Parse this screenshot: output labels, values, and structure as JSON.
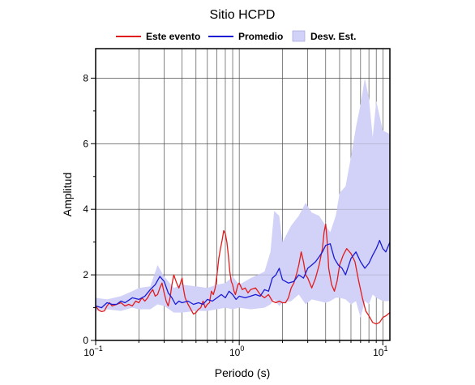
{
  "chart_data": {
    "type": "line",
    "title": "Sitio HCPD",
    "xlabel": "Periodo (s)",
    "ylabel": "Amplitud",
    "x_scale": "log",
    "xlim": [
      0.1,
      11.2
    ],
    "ylim": [
      0,
      8.9
    ],
    "grid": true,
    "legend_placement": "top",
    "x_ticks": [
      {
        "value": 0.1,
        "base": "10",
        "exp": "−1"
      },
      {
        "value": 1,
        "base": "10",
        "exp": "0"
      },
      {
        "value": 10,
        "base": "10",
        "exp": "1"
      }
    ],
    "y_ticks": [
      {
        "value": 0,
        "label": "0"
      },
      {
        "value": 2,
        "label": "2"
      },
      {
        "value": 4,
        "label": "4"
      },
      {
        "value": 6,
        "label": "6"
      },
      {
        "value": 8,
        "label": "8"
      }
    ],
    "series": [
      {
        "name": "Desv. Est.",
        "kind": "band",
        "color": "#d2d2f8",
        "x": [
          0.1,
          0.12,
          0.15,
          0.18,
          0.2,
          0.24,
          0.27,
          0.3,
          0.35,
          0.4,
          0.5,
          0.6,
          0.7,
          0.8,
          0.9,
          1.0,
          1.2,
          1.5,
          1.65,
          1.75,
          1.9,
          2.0,
          2.3,
          2.6,
          2.9,
          3.2,
          3.6,
          4.0,
          4.3,
          4.7,
          5.0,
          5.5,
          6.0,
          6.5,
          7.0,
          7.5,
          8.0,
          8.5,
          9.0,
          10.0,
          11.2
        ],
        "upper": [
          1.3,
          1.25,
          1.35,
          1.5,
          1.6,
          1.65,
          2.3,
          1.95,
          1.6,
          1.7,
          1.65,
          1.6,
          1.7,
          1.75,
          1.95,
          1.7,
          1.9,
          2.1,
          2.7,
          3.95,
          3.8,
          3.0,
          3.5,
          3.8,
          4.2,
          3.9,
          3.8,
          3.5,
          3.3,
          3.8,
          4.5,
          4.7,
          5.6,
          6.5,
          7.2,
          8.0,
          7.4,
          6.2,
          7.3,
          6.4,
          6.3
        ],
        "lower": [
          0.9,
          0.95,
          0.9,
          1.0,
          0.95,
          0.95,
          1.1,
          1.05,
          0.85,
          0.85,
          0.9,
          0.9,
          0.95,
          1.0,
          0.95,
          1.0,
          0.95,
          1.0,
          1.1,
          1.25,
          1.05,
          1.15,
          1.2,
          1.4,
          1.1,
          1.25,
          1.2,
          1.15,
          1.2,
          1.3,
          1.3,
          1.25,
          1.1,
          1.2,
          0.7,
          1.2,
          1.1,
          1.4,
          1.3,
          1.2,
          1.2
        ]
      },
      {
        "name": "Este evento",
        "kind": "line",
        "color": "#e11c1c",
        "x": [
          0.1,
          0.105,
          0.11,
          0.115,
          0.12,
          0.125,
          0.13,
          0.14,
          0.15,
          0.16,
          0.17,
          0.18,
          0.19,
          0.2,
          0.21,
          0.22,
          0.23,
          0.24,
          0.25,
          0.26,
          0.27,
          0.28,
          0.29,
          0.3,
          0.31,
          0.32,
          0.33,
          0.34,
          0.35,
          0.36,
          0.37,
          0.38,
          0.39,
          0.4,
          0.41,
          0.42,
          0.44,
          0.46,
          0.48,
          0.5,
          0.52,
          0.54,
          0.56,
          0.58,
          0.6,
          0.62,
          0.64,
          0.66,
          0.68,
          0.7,
          0.72,
          0.74,
          0.76,
          0.78,
          0.8,
          0.82,
          0.84,
          0.86,
          0.88,
          0.9,
          0.92,
          0.94,
          0.96,
          0.98,
          1.0,
          1.05,
          1.1,
          1.15,
          1.2,
          1.3,
          1.4,
          1.5,
          1.6,
          1.7,
          1.8,
          1.9,
          2.0,
          2.1,
          2.2,
          2.3,
          2.4,
          2.5,
          2.6,
          2.7,
          2.8,
          2.9,
          3.0,
          3.2,
          3.4,
          3.6,
          3.8,
          3.9,
          4.0,
          4.1,
          4.2,
          4.4,
          4.6,
          4.8,
          5.0,
          5.3,
          5.6,
          6.0,
          6.4,
          6.8,
          7.2,
          7.6,
          8.0,
          8.5,
          9.0,
          9.5,
          10.0,
          10.5,
          11.2
        ],
        "y": [
          1.05,
          0.92,
          0.88,
          0.9,
          1.05,
          1.15,
          1.05,
          1.1,
          1.15,
          1.05,
          1.1,
          1.05,
          1.2,
          1.15,
          1.3,
          1.2,
          1.3,
          1.45,
          1.55,
          1.35,
          1.4,
          1.6,
          1.75,
          1.45,
          1.2,
          1.05,
          1.3,
          1.7,
          2.0,
          1.85,
          1.7,
          1.6,
          1.75,
          1.9,
          1.55,
          1.3,
          1.1,
          0.95,
          0.8,
          0.85,
          0.95,
          1.0,
          1.2,
          1.0,
          1.1,
          1.15,
          1.5,
          1.4,
          1.6,
          2.0,
          2.5,
          2.8,
          3.05,
          3.35,
          3.25,
          3.0,
          2.6,
          2.1,
          1.8,
          1.7,
          1.5,
          1.4,
          1.55,
          1.7,
          1.75,
          1.55,
          1.6,
          1.45,
          1.55,
          1.6,
          1.4,
          1.3,
          1.4,
          1.2,
          1.15,
          1.2,
          1.15,
          1.15,
          1.3,
          1.6,
          1.75,
          2.0,
          2.3,
          2.7,
          2.4,
          2.0,
          1.9,
          1.6,
          1.9,
          2.3,
          2.8,
          3.3,
          3.55,
          3.0,
          2.2,
          1.7,
          1.5,
          1.8,
          2.3,
          2.6,
          2.8,
          2.65,
          2.4,
          1.8,
          1.3,
          0.9,
          0.75,
          0.55,
          0.5,
          0.55,
          0.7,
          0.75,
          0.85
        ]
      },
      {
        "name": "Promedio",
        "kind": "line",
        "color": "#1a1ad4",
        "x": [
          0.1,
          0.11,
          0.12,
          0.13,
          0.14,
          0.15,
          0.16,
          0.18,
          0.2,
          0.22,
          0.24,
          0.26,
          0.28,
          0.3,
          0.32,
          0.34,
          0.36,
          0.38,
          0.4,
          0.44,
          0.48,
          0.52,
          0.56,
          0.6,
          0.65,
          0.7,
          0.75,
          0.8,
          0.85,
          0.9,
          0.95,
          1.0,
          1.1,
          1.2,
          1.3,
          1.4,
          1.5,
          1.6,
          1.7,
          1.8,
          1.9,
          2.0,
          2.2,
          2.4,
          2.6,
          2.8,
          3.0,
          3.2,
          3.4,
          3.6,
          3.8,
          4.0,
          4.3,
          4.6,
          4.9,
          5.2,
          5.5,
          6.0,
          6.5,
          7.0,
          7.5,
          8.0,
          8.5,
          9.0,
          9.5,
          10.0,
          10.5,
          11.2
        ],
        "y": [
          1.05,
          1.0,
          1.15,
          1.1,
          1.1,
          1.2,
          1.15,
          1.3,
          1.25,
          1.35,
          1.55,
          1.7,
          1.95,
          1.8,
          1.45,
          1.3,
          1.1,
          1.2,
          1.15,
          1.2,
          1.1,
          1.15,
          1.1,
          1.25,
          1.2,
          1.3,
          1.4,
          1.3,
          1.5,
          1.4,
          1.25,
          1.35,
          1.3,
          1.35,
          1.4,
          1.35,
          1.55,
          1.5,
          1.9,
          2.0,
          2.2,
          1.85,
          1.75,
          1.8,
          2.0,
          1.9,
          2.2,
          2.3,
          2.4,
          2.55,
          2.7,
          2.9,
          2.95,
          2.5,
          2.3,
          2.2,
          2.0,
          2.5,
          2.7,
          2.4,
          2.2,
          2.35,
          2.6,
          2.8,
          3.05,
          2.8,
          2.7,
          3.0
        ]
      }
    ]
  }
}
